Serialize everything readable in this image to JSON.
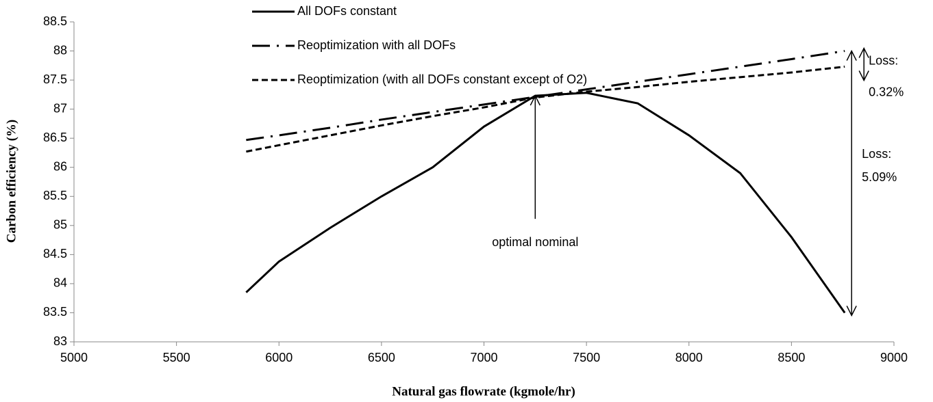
{
  "chart_data": {
    "type": "line",
    "xlabel": "Natural gas flowrate (kgmole/hr)",
    "ylabel": "Carbon efficiency (%)",
    "x": [
      5840,
      6000,
      6250,
      6500,
      6750,
      7000,
      7250,
      7500,
      7750,
      8000,
      8250,
      8500,
      8760
    ],
    "series": [
      {
        "name": "All DOFs constant",
        "color": "#000000",
        "style": "solid",
        "values": [
          83.85,
          84.38,
          84.96,
          85.5,
          86.0,
          86.7,
          87.23,
          87.28,
          87.1,
          86.55,
          85.9,
          84.8,
          83.5
        ]
      },
      {
        "name": "Reoptimization with all DOFs",
        "color": "#000000",
        "style": "dashdot",
        "values": [
          86.47,
          86.55,
          86.68,
          86.82,
          86.95,
          87.08,
          87.21,
          87.34,
          87.47,
          87.6,
          87.73,
          87.86,
          88.0
        ]
      },
      {
        "name": "Reoptimization (with all DOFs constant except of O2)",
        "color": "#000000",
        "style": "dashed",
        "values": [
          86.27,
          86.38,
          86.55,
          86.72,
          86.88,
          87.03,
          87.2,
          87.3,
          87.38,
          87.47,
          87.55,
          87.63,
          87.73
        ]
      }
    ],
    "annotations": [
      "optimal nominal",
      "Loss:",
      "0.32%",
      "Loss:",
      "5.09%"
    ],
    "xlim": [
      5000,
      9000
    ],
    "xticks": [
      5000,
      5500,
      6000,
      6500,
      7000,
      7500,
      8000,
      8500,
      9000
    ],
    "ylim": [
      83,
      88.5
    ],
    "yticks": [
      83,
      83.5,
      84,
      84.5,
      85,
      85.5,
      86,
      86.5,
      87,
      87.5,
      88,
      88.5
    ],
    "legend": "top"
  }
}
